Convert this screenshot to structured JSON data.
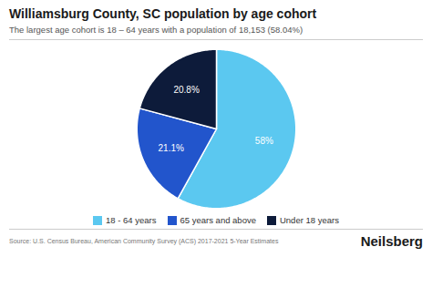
{
  "chart_data": {
    "type": "pie",
    "title": "Williamsburg County, SC population by age cohort",
    "subtitle": "The largest age cohort is 18 – 64 years with a population of 18,153 (58.04%)",
    "categories": [
      "18 - 64 years",
      "65 years and above",
      "Under 18 years"
    ],
    "values": [
      58.0,
      21.1,
      20.8
    ],
    "value_labels": [
      "58%",
      "21.1%",
      "20.8%"
    ],
    "colors": [
      "#5BC8F0",
      "#2255CC",
      "#0D1B3A"
    ],
    "data_labels": true,
    "legend": "bottom",
    "source": "Source: U.S. Census Bureau, American Community Survey (ACS) 2017-2021 5-Year Estimates",
    "brand": "Neilsberg"
  }
}
